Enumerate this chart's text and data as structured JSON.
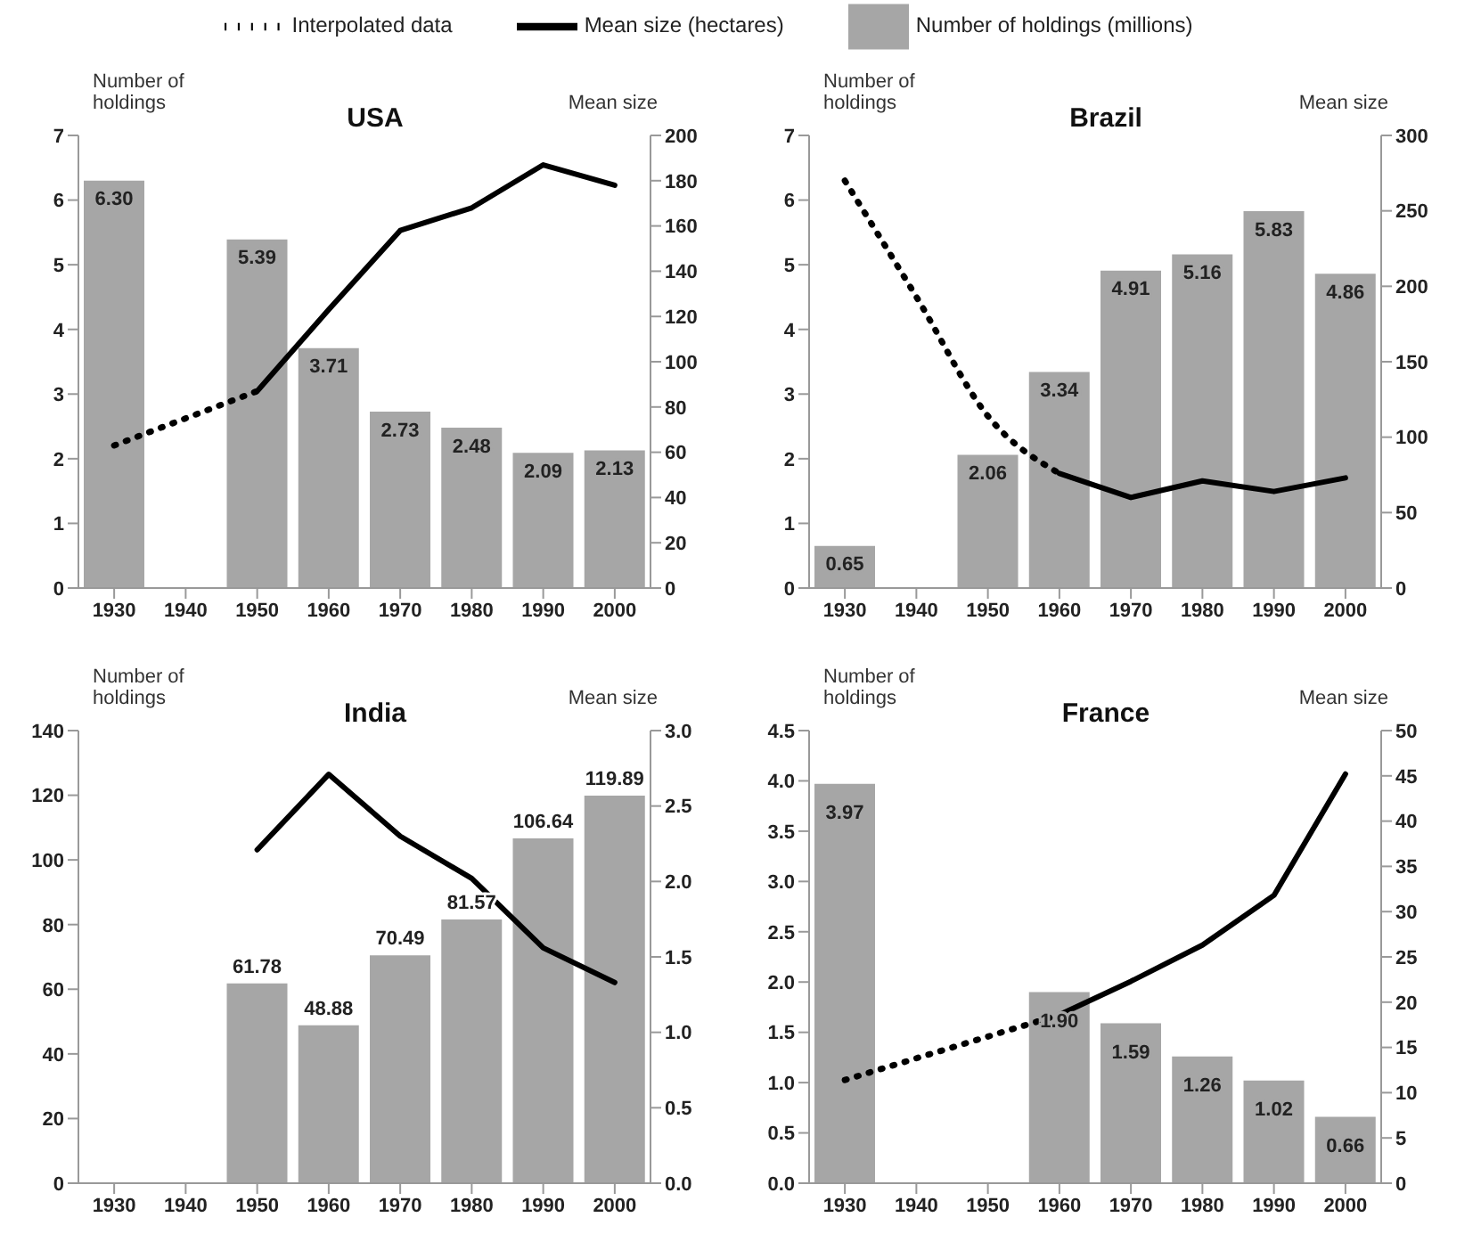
{
  "chart_data": [
    {
      "type": "bar",
      "title": "USA",
      "ylabel": "Number of holdings",
      "y2label": "Mean size",
      "legend": "top",
      "categories": [
        "1930",
        "1940",
        "1950",
        "1960",
        "1970",
        "1980",
        "1990",
        "2000"
      ],
      "ylim": [
        0,
        7
      ],
      "yticks": [
        0,
        1,
        2,
        3,
        4,
        5,
        6,
        7
      ],
      "y2lim": [
        0,
        200
      ],
      "y2ticks": [
        0,
        20,
        40,
        60,
        80,
        100,
        120,
        140,
        160,
        180,
        200
      ],
      "series": [
        {
          "type": "bar",
          "name": "Number of holdings (millions)",
          "color": "#a6a6a6",
          "values": [
            6.3,
            null,
            5.39,
            3.71,
            2.73,
            2.48,
            2.09,
            2.13
          ],
          "value_labels": [
            "6.30",
            null,
            "5.39",
            "3.71",
            "2.73",
            "2.48",
            "2.09",
            "2.13"
          ]
        },
        {
          "type": "line",
          "axis": "y2",
          "name": "Mean size (hectares)",
          "color": "#000000",
          "line_style": "solid",
          "values": [
            null,
            null,
            87,
            123,
            158,
            168,
            187,
            178
          ]
        },
        {
          "type": "line",
          "axis": "y2",
          "name": "Interpolated data",
          "color": "#000000",
          "line_style": "dotted",
          "values": [
            63,
            null,
            87,
            null,
            null,
            null,
            null,
            null
          ]
        }
      ]
    },
    {
      "type": "bar",
      "title": "Brazil",
      "ylabel": "Number of holdings",
      "y2label": "Mean size",
      "categories": [
        "1930",
        "1940",
        "1950",
        "1960",
        "1970",
        "1980",
        "1990",
        "2000"
      ],
      "ylim": [
        0,
        7
      ],
      "yticks": [
        0,
        1,
        2,
        3,
        4,
        5,
        6,
        7
      ],
      "y2lim": [
        0,
        300
      ],
      "y2ticks": [
        0,
        50,
        100,
        150,
        200,
        250,
        300
      ],
      "series": [
        {
          "type": "bar",
          "color": "#a6a6a6",
          "values": [
            0.65,
            null,
            2.06,
            3.34,
            4.91,
            5.16,
            5.83,
            4.86
          ],
          "value_labels": [
            "0.65",
            null,
            "2.06",
            "3.34",
            "4.91",
            "5.16",
            "5.83",
            "4.86"
          ]
        },
        {
          "type": "line",
          "axis": "y2",
          "color": "#000000",
          "line_style": "solid",
          "values": [
            null,
            null,
            null,
            76,
            60,
            71,
            64,
            73
          ]
        },
        {
          "type": "line",
          "axis": "y2",
          "color": "#000000",
          "line_style": "dotted",
          "values": [
            270,
            193,
            114,
            76,
            null,
            null,
            null,
            null
          ]
        }
      ]
    },
    {
      "type": "bar",
      "title": "India",
      "ylabel": "Number of holdings",
      "y2label": "Mean size",
      "categories": [
        "1930",
        "1940",
        "1950",
        "1960",
        "1970",
        "1980",
        "1990",
        "2000"
      ],
      "ylim": [
        0,
        140
      ],
      "yticks": [
        0,
        20,
        40,
        60,
        80,
        100,
        120,
        140
      ],
      "y2lim": [
        0,
        3
      ],
      "y2ticks": [
        {
          "value": 0,
          "label": "0.0"
        },
        0.5,
        {
          "value": 1,
          "label": "1.0"
        },
        1.5,
        {
          "value": 2,
          "label": "2.0"
        },
        2.5,
        {
          "value": 3,
          "label": "3.0"
        }
      ],
      "series": [
        {
          "type": "bar",
          "color": "#a6a6a6",
          "values": [
            null,
            null,
            61.78,
            48.88,
            70.49,
            81.57,
            106.64,
            119.89
          ],
          "value_labels": [
            null,
            null,
            "61.78",
            "48.88",
            "70.49",
            "81.57",
            "106.64",
            "119.89"
          ]
        },
        {
          "type": "line",
          "axis": "y2",
          "color": "#000000",
          "line_style": "solid",
          "values": [
            null,
            null,
            2.21,
            2.71,
            2.3,
            2.02,
            1.56,
            1.33
          ]
        }
      ]
    },
    {
      "type": "bar",
      "title": "France",
      "ylabel": "Number of holdings",
      "y2label": "Mean size",
      "categories": [
        "1930",
        "1940",
        "1950",
        "1960",
        "1970",
        "1980",
        "1990",
        "2000"
      ],
      "ylim": [
        0,
        4.5
      ],
      "yticks": [
        {
          "value": 0,
          "label": "0.0"
        },
        0.5,
        {
          "value": 1,
          "label": "1.0"
        },
        1.5,
        {
          "value": 2,
          "label": "2.0"
        },
        2.5,
        {
          "value": 3,
          "label": "3.0"
        },
        3.5,
        {
          "value": 4,
          "label": "4.0"
        },
        4.5
      ],
      "y2lim": [
        0,
        50
      ],
      "y2ticks": [
        0,
        5,
        10,
        15,
        20,
        25,
        30,
        35,
        40,
        45,
        50
      ],
      "series": [
        {
          "type": "bar",
          "color": "#a6a6a6",
          "values": [
            3.97,
            null,
            null,
            1.9,
            1.59,
            1.26,
            1.02,
            0.66
          ],
          "value_labels": [
            "3.97",
            null,
            null,
            "1.90",
            "1.59",
            "1.26",
            "1.02",
            "0.66"
          ]
        },
        {
          "type": "line",
          "axis": "y2",
          "color": "#000000",
          "line_style": "solid",
          "values": [
            null,
            null,
            null,
            18.6,
            22.3,
            26.3,
            31.8,
            45.2
          ]
        },
        {
          "type": "line",
          "axis": "y2",
          "color": "#000000",
          "line_style": "dotted",
          "values": [
            11.4,
            null,
            null,
            18.6,
            null,
            null,
            null,
            null
          ]
        }
      ]
    }
  ]
}
